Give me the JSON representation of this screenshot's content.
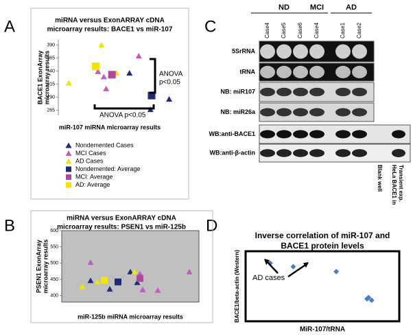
{
  "panel_letters": [
    "A",
    "B",
    "C",
    "D"
  ],
  "chart_data": [
    {
      "type": "scatter",
      "title": [
        "miRNA versus ExonARRAY cDNA",
        "microarray results: BACE1 vs miR-107"
      ],
      "ylabel": [
        "BACE1 ExonArray",
        "microarray results"
      ],
      "xlabel": "miR-107 miRNA microarray results",
      "xlim": [
        0,
        100
      ],
      "ylim": [
        255,
        400
      ],
      "yticks": [
        265,
        290,
        315,
        340,
        365,
        390
      ],
      "legend": true,
      "annotations": [
        {
          "lines": [
            "ANOVA",
            "p<0.05"
          ]
        },
        {
          "lines": [
            "ANOVA p<0.05"
          ]
        }
      ],
      "series": [
        {
          "name": "Nondemented Cases",
          "color": "#1f2a7a",
          "marker": "triangle",
          "x": [
            61,
            80,
            95,
            79
          ],
          "values": [
            336,
            294,
            286,
            266
          ]
        },
        {
          "name": "MCI Cases",
          "color": "#c35cbf",
          "marker": "triangle",
          "x": [
            69,
            34,
            41,
            39
          ],
          "values": [
            369,
            339,
            306,
            329
          ]
        },
        {
          "name": "AD Cases",
          "color": "#f2e600",
          "marker": "triangle",
          "x": [
            37,
            9,
            50
          ],
          "values": [
            390,
            317,
            336
          ]
        },
        {
          "name": "Nondemented: Average",
          "color": "#1f2a7a",
          "marker": "square",
          "x": [
            80
          ],
          "values": [
            293
          ]
        },
        {
          "name": "MCI: Average",
          "color": "#b0479f",
          "marker": "square",
          "x": [
            46
          ],
          "values": [
            333
          ]
        },
        {
          "name": "AD: Average",
          "color": "#f2e600",
          "marker": "square",
          "x": [
            32
          ],
          "values": [
            349
          ]
        }
      ]
    },
    {
      "type": "scatter",
      "title": [
        "miRNA versus ExonARRAY cDNA",
        "microarray results: PSEN1 vs miR-125b"
      ],
      "ylabel": [
        "PSEN1 ExonArray",
        "microarray results"
      ],
      "xlabel": "miR-125b miRNA microarray results",
      "xlim": [
        0,
        100
      ],
      "ylim": [
        380,
        600
      ],
      "yticks": [
        400,
        450,
        500,
        550,
        600
      ],
      "legend": false,
      "background": "#c0c0c0",
      "series": [
        {
          "color": "#1f2a7a",
          "marker": "triangle",
          "x": [
            21,
            35,
            50,
            55
          ],
          "values": [
            446,
            420,
            473,
            440
          ]
        },
        {
          "color": "#c35cbf",
          "marker": "triangle",
          "x": [
            21,
            57,
            59,
            70,
            93
          ],
          "values": [
            502,
            467,
            418,
            416,
            473
          ]
        },
        {
          "color": "#f2e600",
          "marker": "triangle",
          "x": [
            15,
            26,
            53
          ],
          "values": [
            427,
            442,
            473
          ]
        },
        {
          "color": "#1f2a7a",
          "marker": "square",
          "x": [
            41
          ],
          "values": [
            442
          ]
        },
        {
          "color": "#b0479f",
          "marker": "square",
          "x": [
            57
          ],
          "values": [
            453
          ]
        },
        {
          "color": "#f2e600",
          "marker": "square",
          "x": [
            31
          ],
          "values": [
            447
          ]
        }
      ]
    },
    {
      "type": "scatter",
      "title": [
        "Inverse correlation of miR-107 and",
        "BACE1 protein levels"
      ],
      "ylabel": [
        "BACE1/beta-actin (Western)"
      ],
      "xlabel": "MiR-107/tRNA",
      "xlim": [
        0,
        100
      ],
      "ylim": [
        0,
        100
      ],
      "legend": false,
      "annotations": [
        {
          "lines": [
            "AD cases"
          ]
        }
      ],
      "series": [
        {
          "color": "#4a7fc1",
          "marker": "diamond",
          "x": [
            16,
            31,
            59,
            80,
            82,
            79
          ],
          "values": [
            83,
            78,
            71,
            34,
            30,
            32
          ]
        }
      ]
    }
  ],
  "blot": {
    "group_labels": [
      "ND",
      "MCI",
      "AD"
    ],
    "lane_labels": [
      "Case4",
      "Case5",
      "Case6",
      "Case4",
      "Case1",
      "Case2"
    ],
    "row_labels": [
      "5SrRNA",
      "tRNA",
      "NB: miR107",
      "NB: miR26a",
      "WB:anti-BACE1",
      "WB:anti-β-actin"
    ],
    "extra_lane_labels": [
      [
        "Blank well"
      ],
      [
        "HeLa BACE1 in",
        "Transient exp."
      ]
    ]
  }
}
